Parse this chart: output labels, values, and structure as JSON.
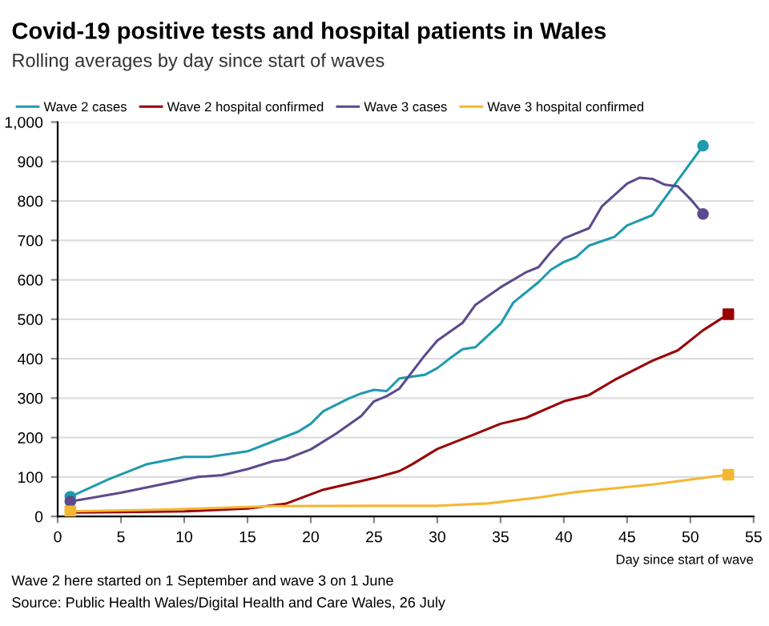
{
  "chart_data": {
    "type": "line",
    "title": "Covid-19 positive tests and hospital patients in Wales",
    "subtitle": "Rolling averages by day since start of waves",
    "xlabel": "Day since start of wave",
    "series": [
      {
        "name": "Wave 2 cases",
        "color": "#1f9aae",
        "marker": "none",
        "x": [
          1,
          4,
          7,
          10,
          12,
          15,
          17,
          19,
          20,
          21,
          23,
          24,
          25,
          26,
          27,
          29,
          30,
          31,
          32,
          33,
          35,
          36,
          38,
          39,
          40,
          41,
          42,
          44,
          45,
          47,
          51
        ],
        "values": [
          50,
          94,
          132,
          151,
          151,
          165,
          190,
          215,
          235,
          267,
          299,
          312,
          321,
          318,
          350,
          359,
          376,
          401,
          424,
          429,
          488,
          542,
          594,
          626,
          645,
          658,
          687,
          709,
          738,
          764,
          940
        ]
      },
      {
        "name": "Wave 2 hospital confirmed",
        "color": "#990000",
        "marker": "none",
        "x": [
          1,
          5,
          10,
          15,
          18,
          21,
          25,
          27,
          28,
          30,
          33,
          35,
          37,
          40,
          42,
          44,
          47,
          49,
          51,
          53
        ],
        "values": [
          10,
          11,
          13,
          20,
          32,
          68,
          97,
          115,
          132,
          171,
          209,
          235,
          250,
          292,
          308,
          346,
          395,
          421,
          472,
          513
        ]
      },
      {
        "name": "Wave 3 cases",
        "color": "#5c4a8c",
        "marker": "none",
        "x": [
          1,
          5,
          8,
          11,
          13,
          15,
          17,
          18,
          20,
          22,
          24,
          25,
          26,
          27,
          29,
          30,
          32,
          33,
          35,
          37,
          38,
          39,
          40,
          42,
          43,
          45,
          46,
          47,
          48,
          49,
          50,
          51
        ],
        "values": [
          38,
          60,
          80,
          100,
          105,
          120,
          140,
          145,
          170,
          210,
          255,
          292,
          305,
          324,
          408,
          446,
          491,
          536,
          581,
          619,
          632,
          671,
          705,
          731,
          786,
          844,
          859,
          856,
          841,
          837,
          805,
          767
        ]
      },
      {
        "name": "Wave 3 hospital confirmed",
        "color": "#f5b731",
        "marker": "none",
        "x": [
          1,
          8,
          15,
          17,
          25,
          30,
          34,
          38,
          41,
          47,
          53
        ],
        "values": [
          13,
          17,
          24,
          26,
          27,
          27,
          33,
          48,
          62,
          81,
          106
        ]
      },
      {
        "type": "scatter",
        "color": "#1f9aae",
        "marker": "circle",
        "x": [
          1,
          51
        ],
        "values": [
          50,
          940
        ]
      },
      {
        "type": "scatter",
        "color": "#990000",
        "marker": "square",
        "x": [
          53
        ],
        "values": [
          513
        ]
      },
      {
        "type": "scatter",
        "color": "#5c4a8c",
        "marker": "circle",
        "x": [
          1,
          51
        ],
        "values": [
          38,
          767
        ]
      },
      {
        "type": "scatter",
        "color": "#f5b731",
        "marker": "square",
        "x": [
          1,
          53
        ],
        "values": [
          13,
          106
        ]
      }
    ],
    "xlim": [
      0,
      55
    ],
    "xticks": [
      0,
      5,
      10,
      15,
      20,
      25,
      30,
      35,
      40,
      45,
      50,
      55
    ],
    "ylim": [
      0,
      1000
    ],
    "yticks": [
      0,
      100,
      200,
      300,
      400,
      500,
      600,
      700,
      800,
      900,
      {
        "value": 1000,
        "label": "1,000"
      }
    ],
    "grid": "y",
    "legend": "top left",
    "line_style": "solid",
    "annotations": [
      "Wave 2 here started on 1 September and wave 3 on 1 June",
      "Source: Public Health Wales/Digital Health and Care Wales, 26 July"
    ]
  }
}
